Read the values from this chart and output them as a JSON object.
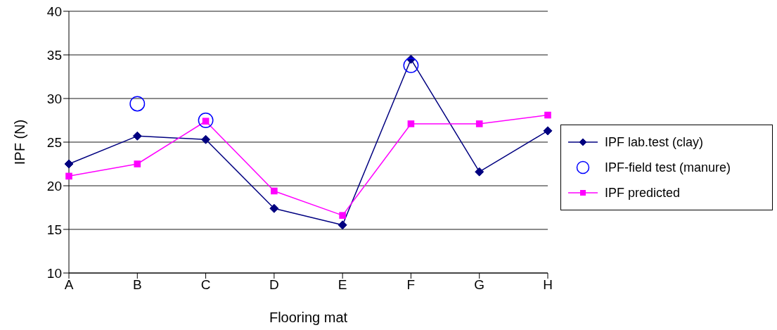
{
  "chart_data": {
    "type": "line",
    "xlabel": "Flooring mat",
    "ylabel": "IPF (N)",
    "categories": [
      "A",
      "B",
      "C",
      "D",
      "E",
      "F",
      "G",
      "H"
    ],
    "series": [
      {
        "name": "IPF lab.test (clay)",
        "marker": "diamond",
        "color": "#000080",
        "values": [
          22.5,
          25.7,
          25.3,
          17.4,
          15.5,
          34.5,
          21.6,
          26.3
        ]
      },
      {
        "name": "IPF-field test (manure)",
        "type": "scatter",
        "marker": "circle",
        "color": "#0000ff",
        "values": [
          null,
          29.4,
          27.5,
          null,
          null,
          33.8,
          null,
          null
        ]
      },
      {
        "name": "IPF predicted",
        "marker": "square",
        "color": "#ff00ff",
        "values": [
          21.1,
          22.5,
          27.4,
          19.4,
          16.6,
          27.1,
          27.1,
          28.1
        ]
      }
    ],
    "ylim": [
      10,
      40
    ],
    "yticks": [
      10,
      15,
      20,
      25,
      30,
      35,
      40
    ],
    "grid": "y",
    "legend": "right"
  }
}
